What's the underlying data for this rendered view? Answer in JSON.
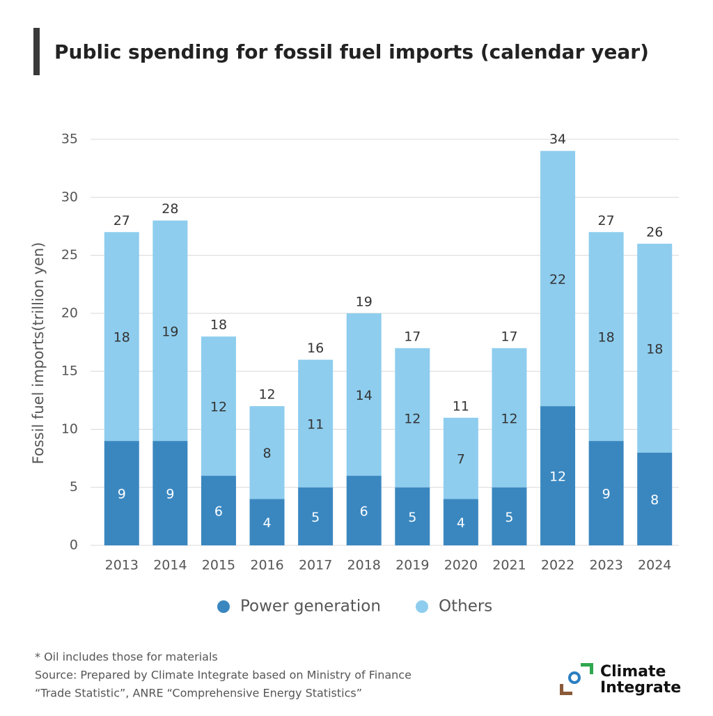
{
  "chart_data": {
    "type": "stacked_bar",
    "title": "Public spending for fossil fuel imports (calendar year)",
    "y_label": "Fossil fuel imports(trillion yen)",
    "categories": [
      "2013",
      "2014",
      "2015",
      "2016",
      "2017",
      "2018",
      "2019",
      "2020",
      "2021",
      "2022",
      "2023",
      "2024"
    ],
    "series": [
      {
        "name": "Power generation",
        "color": "#3a87c0",
        "values": [
          9,
          9,
          6,
          4,
          5,
          6,
          5,
          4,
          5,
          12,
          9,
          8
        ]
      },
      {
        "name": "Others",
        "color": "#8ecdee",
        "values": [
          18,
          19,
          12,
          8,
          11,
          14,
          12,
          7,
          12,
          22,
          18,
          18
        ]
      }
    ],
    "totals": [
      27,
      28,
      18,
      12,
      16,
      19,
      17,
      11,
      17,
      34,
      27,
      26
    ],
    "ylim": [
      0,
      35
    ],
    "yticks": [
      0,
      5,
      10,
      15,
      20,
      25,
      30,
      35
    ],
    "grid": true,
    "notes": [
      "* Oil includes those for materials",
      "Source: Prepared by Climate Integrate based on Ministry of Finance",
      "“Trade Statistic”, ANRE  “Comprehensive Energy Statistics”"
    ],
    "logo": [
      "Climate",
      "Integrate"
    ]
  }
}
